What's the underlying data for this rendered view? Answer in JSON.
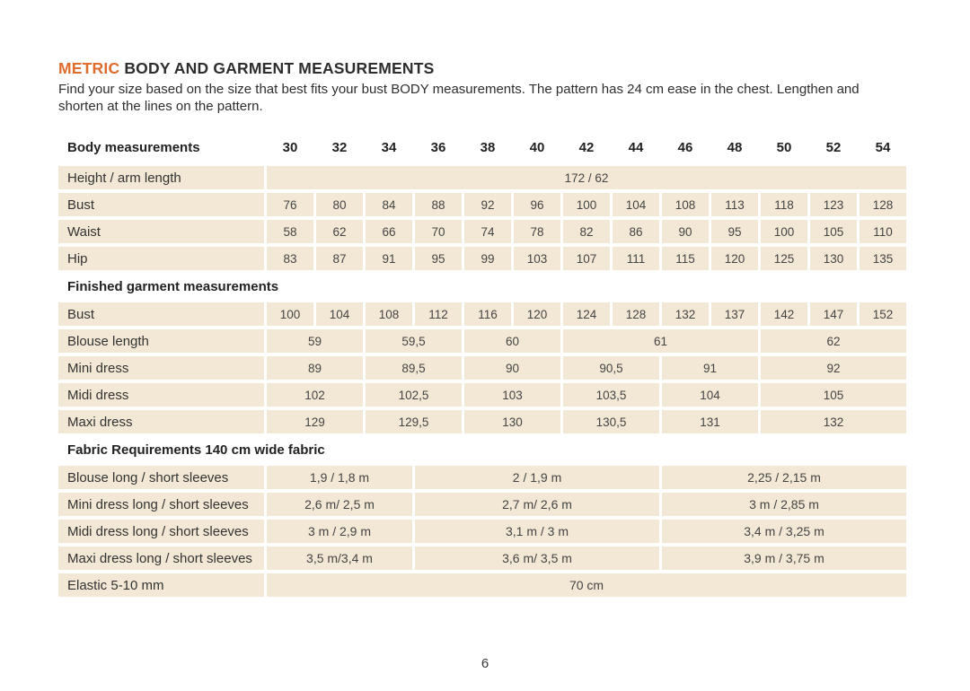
{
  "header": {
    "title_highlight": "METRIC",
    "title_main": "BODY AND GARMENT MEASUREMENTS",
    "intro_line1": "Find your size based on the size that best fits your bust BODY measurements. The pattern has 24 cm ease in the chest. Lengthen and",
    "intro_line2": "shorten at the lines on the pattern."
  },
  "colors": {
    "accent_orange": "#DE6C2C",
    "cell_beige": "#F2E8D5",
    "text_dark": "#2D2D2D"
  },
  "table": {
    "header_label": "Body measurements",
    "sizes": [
      "30",
      "32",
      "34",
      "36",
      "38",
      "40",
      "42",
      "44",
      "46",
      "48",
      "50",
      "52",
      "54"
    ],
    "sections": [
      {
        "title": "",
        "rows": [
          {
            "label": "Height / arm length",
            "cells": [
              {
                "text": "172 / 62",
                "span": 13
              }
            ]
          },
          {
            "label": "Bust",
            "cells": [
              {
                "text": "76",
                "span": 1
              },
              {
                "text": "80",
                "span": 1
              },
              {
                "text": "84",
                "span": 1
              },
              {
                "text": "88",
                "span": 1
              },
              {
                "text": "92",
                "span": 1
              },
              {
                "text": "96",
                "span": 1
              },
              {
                "text": "100",
                "span": 1
              },
              {
                "text": "104",
                "span": 1
              },
              {
                "text": "108",
                "span": 1
              },
              {
                "text": "113",
                "span": 1
              },
              {
                "text": "118",
                "span": 1
              },
              {
                "text": "123",
                "span": 1
              },
              {
                "text": "128",
                "span": 1
              }
            ]
          },
          {
            "label": "Waist",
            "cells": [
              {
                "text": "58",
                "span": 1
              },
              {
                "text": "62",
                "span": 1
              },
              {
                "text": "66",
                "span": 1
              },
              {
                "text": "70",
                "span": 1
              },
              {
                "text": "74",
                "span": 1
              },
              {
                "text": "78",
                "span": 1
              },
              {
                "text": "82",
                "span": 1
              },
              {
                "text": "86",
                "span": 1
              },
              {
                "text": "90",
                "span": 1
              },
              {
                "text": "95",
                "span": 1
              },
              {
                "text": "100",
                "span": 1
              },
              {
                "text": "105",
                "span": 1
              },
              {
                "text": "110",
                "span": 1
              }
            ]
          },
          {
            "label": "Hip",
            "cells": [
              {
                "text": "83",
                "span": 1
              },
              {
                "text": "87",
                "span": 1
              },
              {
                "text": "91",
                "span": 1
              },
              {
                "text": "95",
                "span": 1
              },
              {
                "text": "99",
                "span": 1
              },
              {
                "text": "103",
                "span": 1
              },
              {
                "text": "107",
                "span": 1
              },
              {
                "text": "111",
                "span": 1
              },
              {
                "text": "115",
                "span": 1
              },
              {
                "text": "120",
                "span": 1
              },
              {
                "text": "125",
                "span": 1
              },
              {
                "text": "130",
                "span": 1
              },
              {
                "text": "135",
                "span": 1
              }
            ]
          }
        ]
      },
      {
        "title": "Finished garment measurements",
        "rows": [
          {
            "label": "Bust",
            "cells": [
              {
                "text": "100",
                "span": 1
              },
              {
                "text": "104",
                "span": 1
              },
              {
                "text": "108",
                "span": 1
              },
              {
                "text": "112",
                "span": 1
              },
              {
                "text": "116",
                "span": 1
              },
              {
                "text": "120",
                "span": 1
              },
              {
                "text": "124",
                "span": 1
              },
              {
                "text": "128",
                "span": 1
              },
              {
                "text": "132",
                "span": 1
              },
              {
                "text": "137",
                "span": 1
              },
              {
                "text": "142",
                "span": 1
              },
              {
                "text": "147",
                "span": 1
              },
              {
                "text": "152",
                "span": 1
              }
            ]
          },
          {
            "label": "Blouse length",
            "cells": [
              {
                "text": "59",
                "span": 2
              },
              {
                "text": "59,5",
                "span": 2
              },
              {
                "text": "60",
                "span": 2
              },
              {
                "text": "61",
                "span": 4
              },
              {
                "text": "62",
                "span": 3
              }
            ]
          },
          {
            "label": "Mini dress",
            "cells": [
              {
                "text": "89",
                "span": 2
              },
              {
                "text": "89,5",
                "span": 2
              },
              {
                "text": "90",
                "span": 2
              },
              {
                "text": "90,5",
                "span": 2
              },
              {
                "text": "91",
                "span": 2
              },
              {
                "text": "92",
                "span": 3
              }
            ]
          },
          {
            "label": "Midi dress",
            "cells": [
              {
                "text": "102",
                "span": 2
              },
              {
                "text": "102,5",
                "span": 2
              },
              {
                "text": "103",
                "span": 2
              },
              {
                "text": "103,5",
                "span": 2
              },
              {
                "text": "104",
                "span": 2
              },
              {
                "text": "105",
                "span": 3
              }
            ]
          },
          {
            "label": "Maxi dress",
            "cells": [
              {
                "text": "129",
                "span": 2
              },
              {
                "text": "129,5",
                "span": 2
              },
              {
                "text": "130",
                "span": 2
              },
              {
                "text": "130,5",
                "span": 2
              },
              {
                "text": "131",
                "span": 2
              },
              {
                "text": "132",
                "span": 3
              }
            ]
          }
        ]
      },
      {
        "title": "Fabric Requirements 140 cm wide fabric",
        "rows": [
          {
            "label": "Blouse long / short sleeves",
            "cells": [
              {
                "text": "1,9  / 1,8 m",
                "span": 3
              },
              {
                "text": "2  / 1,9 m",
                "span": 5
              },
              {
                "text": "2,25  / 2,15 m",
                "span": 5
              }
            ]
          },
          {
            "label": "Mini dress long / short sleeves",
            "cells": [
              {
                "text": "2,6 m/ 2,5 m",
                "span": 3
              },
              {
                "text": "2,7 m/ 2,6 m",
                "span": 5
              },
              {
                "text": "3 m / 2,85 m",
                "span": 5
              }
            ]
          },
          {
            "label": "Midi dress long / short sleeves",
            "cells": [
              {
                "text": "3 m / 2,9 m",
                "span": 3
              },
              {
                "text": "3,1 m / 3 m",
                "span": 5
              },
              {
                "text": "3,4 m / 3,25 m",
                "span": 5
              }
            ]
          },
          {
            "label": "Maxi dress long / short sleeves",
            "cells": [
              {
                "text": "3,5 m/3,4 m",
                "span": 3
              },
              {
                "text": "3,6 m/ 3,5 m",
                "span": 5
              },
              {
                "text": "3,9 m / 3,75 m",
                "span": 5
              }
            ]
          },
          {
            "label": "Elastic 5-10 mm",
            "cells": [
              {
                "text": "70 cm",
                "span": 13
              }
            ]
          }
        ]
      }
    ]
  },
  "footer": {
    "page_number": "6"
  }
}
